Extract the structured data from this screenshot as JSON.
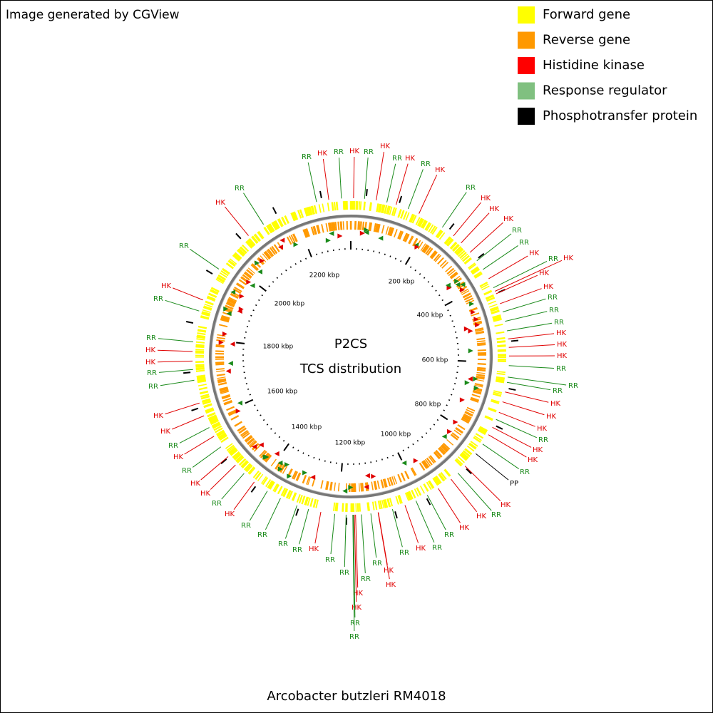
{
  "header": {
    "title": "Image generated by CGView"
  },
  "legend": [
    {
      "label": "Forward gene",
      "color": "#ffff00"
    },
    {
      "label": "Reverse gene",
      "color": "#ff9900"
    },
    {
      "label": "Histidine kinase",
      "color": "#ff0000"
    },
    {
      "label": "Response regulator",
      "color": "#80c080"
    },
    {
      "label": "Phosphotransfer protein",
      "color": "#000000"
    }
  ],
  "center": {
    "title": "P2CS",
    "subtitle": "TCS distribution"
  },
  "scale_labels": [
    "200 kbp",
    "400 kbp",
    "600 kbp",
    "800 kbp",
    "1000 kbp",
    "1200 kbp",
    "1400 kbp",
    "1600 kbp",
    "1800 kbp",
    "2000 kbp",
    "2200 kbp"
  ],
  "callouts": [
    {
      "text": "RR",
      "color": "#1a8a1a"
    },
    {
      "text": "HK",
      "color": "#e00000"
    },
    {
      "text": "RR",
      "color": "#1a8a1a"
    },
    {
      "text": "HK",
      "color": "#e00000"
    },
    {
      "text": "RR",
      "color": "#1a8a1a"
    },
    {
      "text": "HK",
      "color": "#e00000"
    },
    {
      "text": "RR",
      "color": "#1a8a1a"
    },
    {
      "text": "HK",
      "color": "#e00000"
    },
    {
      "text": "RR",
      "color": "#1a8a1a"
    },
    {
      "text": "HK",
      "color": "#e00000"
    },
    {
      "text": "RR",
      "color": "#1a8a1a"
    },
    {
      "text": "HK",
      "color": "#e00000"
    },
    {
      "text": "HK",
      "color": "#e00000"
    },
    {
      "text": "HK",
      "color": "#e00000"
    },
    {
      "text": "RR",
      "color": "#1a8a1a"
    },
    {
      "text": "RR",
      "color": "#1a8a1a"
    },
    {
      "text": "HK",
      "color": "#e00000"
    },
    {
      "text": "RR",
      "color": "#1a8a1a"
    },
    {
      "text": "HK",
      "color": "#e00000"
    },
    {
      "text": "HK",
      "color": "#e00000"
    },
    {
      "text": "HK",
      "color": "#e00000"
    },
    {
      "text": "RR",
      "color": "#1a8a1a"
    },
    {
      "text": "RR",
      "color": "#1a8a1a"
    },
    {
      "text": "RR",
      "color": "#1a8a1a"
    },
    {
      "text": "HK",
      "color": "#e00000"
    },
    {
      "text": "HK",
      "color": "#e00000"
    },
    {
      "text": "HK",
      "color": "#e00000"
    },
    {
      "text": "RR",
      "color": "#1a8a1a"
    },
    {
      "text": "RR",
      "color": "#1a8a1a"
    },
    {
      "text": "RR",
      "color": "#1a8a1a"
    },
    {
      "text": "HK",
      "color": "#e00000"
    },
    {
      "text": "HK",
      "color": "#e00000"
    },
    {
      "text": "HK",
      "color": "#e00000"
    },
    {
      "text": "RR",
      "color": "#1a8a1a"
    },
    {
      "text": "HK",
      "color": "#e00000"
    },
    {
      "text": "HK",
      "color": "#e00000"
    },
    {
      "text": "RR",
      "color": "#1a8a1a"
    },
    {
      "text": "PP",
      "color": "#000000"
    },
    {
      "text": "HK",
      "color": "#e00000"
    },
    {
      "text": "RR",
      "color": "#1a8a1a"
    },
    {
      "text": "HK",
      "color": "#e00000"
    },
    {
      "text": "HK",
      "color": "#e00000"
    },
    {
      "text": "RR",
      "color": "#1a8a1a"
    },
    {
      "text": "RR",
      "color": "#1a8a1a"
    },
    {
      "text": "HK",
      "color": "#e00000"
    },
    {
      "text": "RR",
      "color": "#1a8a1a"
    },
    {
      "text": "HK",
      "color": "#e00000"
    },
    {
      "text": "HK",
      "color": "#e00000"
    },
    {
      "text": "RR",
      "color": "#1a8a1a"
    },
    {
      "text": "RR",
      "color": "#1a8a1a"
    },
    {
      "text": "RR",
      "color": "#1a8a1a"
    },
    {
      "text": "RR",
      "color": "#1a8a1a"
    },
    {
      "text": "HK",
      "color": "#e00000"
    },
    {
      "text": "RR",
      "color": "#1a8a1a"
    },
    {
      "text": "RR",
      "color": "#1a8a1a"
    },
    {
      "text": "RR",
      "color": "#1a8a1a"
    },
    {
      "text": "RR",
      "color": "#1a8a1a"
    },
    {
      "text": "HK",
      "color": "#e00000"
    },
    {
      "text": "RR",
      "color": "#1a8a1a"
    },
    {
      "text": "HK",
      "color": "#e00000"
    },
    {
      "text": "HK",
      "color": "#e00000"
    },
    {
      "text": "RR",
      "color": "#1a8a1a"
    },
    {
      "text": "HK",
      "color": "#e00000"
    },
    {
      "text": "RR",
      "color": "#1a8a1a"
    },
    {
      "text": "HK",
      "color": "#e00000"
    },
    {
      "text": "HK",
      "color": "#e00000"
    },
    {
      "text": "RR",
      "color": "#1a8a1a"
    },
    {
      "text": "RR",
      "color": "#1a8a1a"
    },
    {
      "text": "HK",
      "color": "#e00000"
    },
    {
      "text": "HK",
      "color": "#e00000"
    },
    {
      "text": "RR",
      "color": "#1a8a1a"
    },
    {
      "text": "RR",
      "color": "#1a8a1a"
    },
    {
      "text": "HK",
      "color": "#e00000"
    },
    {
      "text": "RR",
      "color": "#1a8a1a"
    },
    {
      "text": "HK",
      "color": "#e00000"
    },
    {
      "text": "RR",
      "color": "#1a8a1a"
    },
    {
      "text": "HK",
      "color": "#e00000"
    },
    {
      "text": "HK",
      "color": "#e00000"
    },
    {
      "text": "RR",
      "color": "#1a8a1a"
    },
    {
      "text": "RR",
      "color": "#1a8a1a"
    }
  ],
  "footer": {
    "organism": "Arcobacter butzleri RM4018"
  }
}
